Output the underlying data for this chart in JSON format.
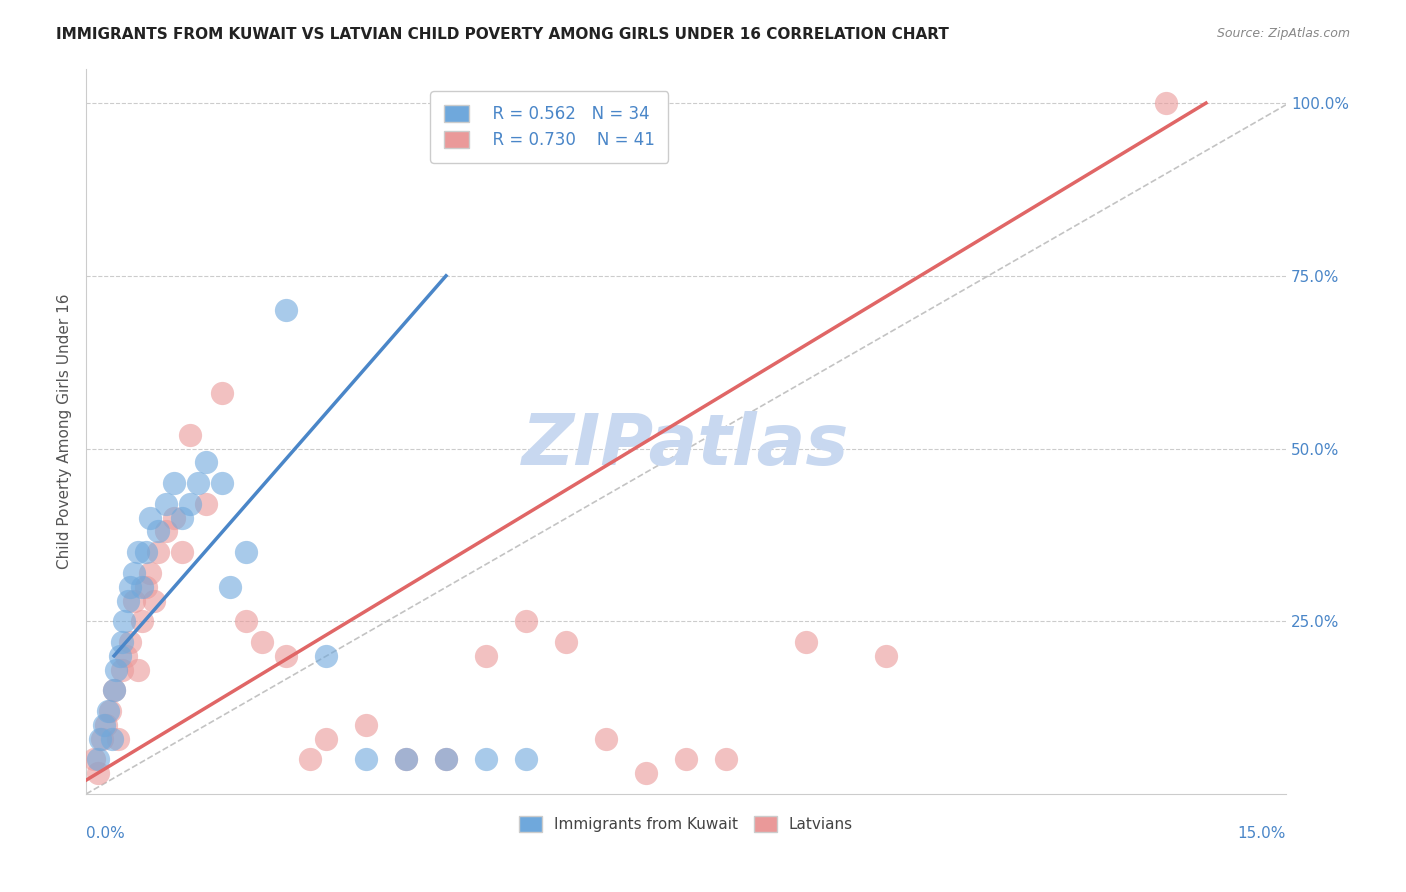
{
  "title": "IMMIGRANTS FROM KUWAIT VS LATVIAN CHILD POVERTY AMONG GIRLS UNDER 16 CORRELATION CHART",
  "source": "Source: ZipAtlas.com",
  "ylabel": "Child Poverty Among Girls Under 16",
  "xmin": 0.0,
  "xmax": 15.0,
  "ymin": 0.0,
  "ymax": 105.0,
  "right_yticks": [
    0.0,
    25.0,
    50.0,
    75.0,
    100.0
  ],
  "right_yticklabels": [
    "",
    "25.0%",
    "50.0%",
    "75.0%",
    "100.0%"
  ],
  "legend_blue_r": "R = 0.562",
  "legend_blue_n": "N = 34",
  "legend_pink_r": "R = 0.730",
  "legend_pink_n": "N = 41",
  "legend_label_blue": "Immigrants from Kuwait",
  "legend_label_pink": "Latvians",
  "blue_color": "#6fa8dc",
  "pink_color": "#ea9999",
  "blue_line_color": "#4a86c8",
  "pink_line_color": "#e06666",
  "watermark": "ZIPatlas",
  "watermark_color": "#c8d8f0",
  "blue_scatter_x": [
    0.15,
    0.18,
    0.22,
    0.28,
    0.32,
    0.35,
    0.38,
    0.42,
    0.45,
    0.48,
    0.52,
    0.55,
    0.6,
    0.65,
    0.7,
    0.75,
    0.8,
    0.9,
    1.0,
    1.1,
    1.2,
    1.3,
    1.4,
    1.5,
    1.7,
    1.8,
    2.0,
    2.5,
    3.0,
    3.5,
    4.0,
    4.5,
    5.0,
    5.5
  ],
  "blue_scatter_y": [
    5.0,
    8.0,
    10.0,
    12.0,
    8.0,
    15.0,
    18.0,
    20.0,
    22.0,
    25.0,
    28.0,
    30.0,
    32.0,
    35.0,
    30.0,
    35.0,
    40.0,
    38.0,
    42.0,
    45.0,
    40.0,
    42.0,
    45.0,
    48.0,
    45.0,
    30.0,
    35.0,
    70.0,
    20.0,
    5.0,
    5.0,
    5.0,
    5.0,
    5.0
  ],
  "pink_scatter_x": [
    0.1,
    0.15,
    0.2,
    0.25,
    0.3,
    0.35,
    0.4,
    0.45,
    0.5,
    0.55,
    0.6,
    0.65,
    0.7,
    0.75,
    0.8,
    0.85,
    0.9,
    1.0,
    1.1,
    1.2,
    1.3,
    1.5,
    1.7,
    2.0,
    2.2,
    2.5,
    2.8,
    3.0,
    3.5,
    4.0,
    4.5,
    5.0,
    5.5,
    6.0,
    6.5,
    7.0,
    7.5,
    8.0,
    9.0,
    10.0,
    13.5
  ],
  "pink_scatter_y": [
    5.0,
    3.0,
    8.0,
    10.0,
    12.0,
    15.0,
    8.0,
    18.0,
    20.0,
    22.0,
    28.0,
    18.0,
    25.0,
    30.0,
    32.0,
    28.0,
    35.0,
    38.0,
    40.0,
    35.0,
    52.0,
    42.0,
    58.0,
    25.0,
    22.0,
    20.0,
    5.0,
    8.0,
    10.0,
    5.0,
    5.0,
    20.0,
    25.0,
    22.0,
    8.0,
    3.0,
    5.0,
    5.0,
    22.0,
    20.0,
    100.0
  ],
  "blue_line_x": [
    0.35,
    4.5
  ],
  "blue_line_y": [
    20.0,
    75.0
  ],
  "pink_line_x": [
    0.0,
    14.0
  ],
  "pink_line_y": [
    2.0,
    100.0
  ],
  "grid_color": "#cccccc",
  "bg_color": "#ffffff",
  "title_fontsize": 11,
  "source_fontsize": 9,
  "axis_label_color": "#4a86c8",
  "left_ylabel_color": "#555555"
}
